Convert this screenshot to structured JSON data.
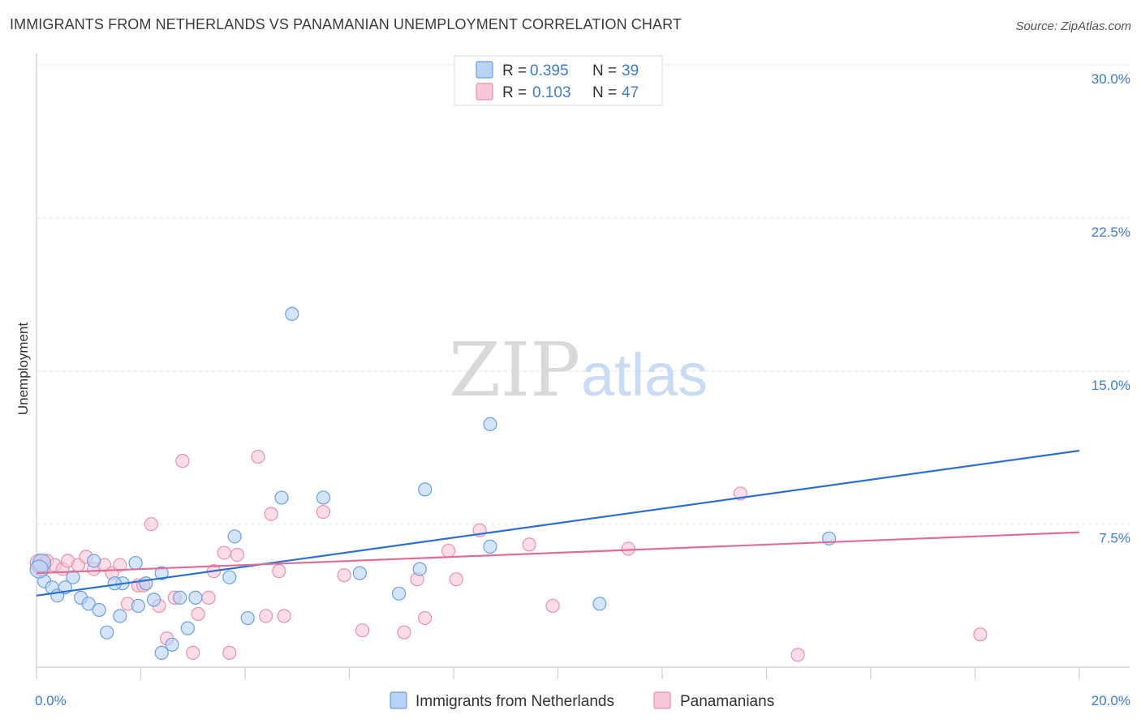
{
  "title": "IMMIGRANTS FROM NETHERLANDS VS PANAMANIAN UNEMPLOYMENT CORRELATION CHART",
  "source": "Source: ZipAtlas.com",
  "colors": {
    "blue_fill": "#b8d3f5",
    "blue_stroke": "#6a9fe0",
    "blue_line": "#2a6fd6",
    "pink_fill": "#f8c6d6",
    "pink_stroke": "#ea8fae",
    "pink_line": "#e06c98",
    "tick_text": "#3d7bd1",
    "grid": "#e2e2e2"
  },
  "legend": {
    "rows": [
      {
        "r_label": "R =",
        "r_value": "0.395",
        "n_label": "N =",
        "n_value": "39"
      },
      {
        "r_label": "R =",
        "r_value": "0.103",
        "n_label": "N =",
        "n_value": "47"
      }
    ]
  },
  "bottom_legend": [
    "Immigrants from Netherlands",
    "Panamanians"
  ],
  "watermark": {
    "zip": "ZIP",
    "atlas": "atlas"
  },
  "chart_data": {
    "type": "scatter",
    "title": "IMMIGRANTS FROM NETHERLANDS VS PANAMANIAN UNEMPLOYMENT CORRELATION CHART",
    "xlabel": "",
    "ylabel": "Unemployment",
    "xlim": [
      0,
      20
    ],
    "ylim": [
      0,
      31
    ],
    "x_tick_labels": [
      "0.0%",
      "20.0%"
    ],
    "y_ticks": [
      7.5,
      15.0,
      22.5,
      30.0
    ],
    "y_tick_labels": [
      "7.5%",
      "15.0%",
      "22.5%",
      "30.0%"
    ],
    "grid": true,
    "series": [
      {
        "name": "Immigrants from Netherlands",
        "color": "blue",
        "trend": {
          "x": [
            0,
            20
          ],
          "y": [
            4.0,
            11.1
          ]
        },
        "points": [
          [
            0.1,
            5.6
          ],
          [
            0.15,
            4.7
          ],
          [
            0.3,
            4.4
          ],
          [
            0.4,
            4.0
          ],
          [
            0.55,
            4.4
          ],
          [
            0.7,
            4.9
          ],
          [
            0.85,
            3.9
          ],
          [
            1.0,
            3.6
          ],
          [
            1.1,
            5.7
          ],
          [
            1.2,
            3.3
          ],
          [
            1.35,
            2.2
          ],
          [
            1.6,
            3.0
          ],
          [
            1.65,
            4.6
          ],
          [
            1.9,
            5.6
          ],
          [
            1.95,
            3.5
          ],
          [
            2.1,
            4.6
          ],
          [
            2.25,
            3.8
          ],
          [
            2.4,
            5.1
          ],
          [
            2.4,
            1.2
          ],
          [
            2.6,
            1.6
          ],
          [
            2.75,
            3.9
          ],
          [
            2.9,
            2.4
          ],
          [
            3.05,
            3.9
          ],
          [
            3.7,
            4.9
          ],
          [
            3.8,
            6.9
          ],
          [
            4.05,
            2.9
          ],
          [
            4.7,
            8.8
          ],
          [
            4.9,
            17.8
          ],
          [
            5.5,
            8.8
          ],
          [
            6.2,
            5.1
          ],
          [
            6.95,
            4.1
          ],
          [
            7.35,
            5.3
          ],
          [
            7.45,
            9.2
          ],
          [
            8.7,
            12.4
          ],
          [
            8.7,
            6.4
          ],
          [
            10.8,
            3.6
          ],
          [
            15.2,
            6.8
          ],
          [
            0.05,
            5.3
          ],
          [
            1.5,
            4.6
          ]
        ]
      },
      {
        "name": "Panamanians",
        "color": "pink",
        "trend": {
          "x": [
            0,
            20
          ],
          "y": [
            5.1,
            7.1
          ]
        },
        "points": [
          [
            0.05,
            5.6
          ],
          [
            0.1,
            5.4
          ],
          [
            0.2,
            5.7
          ],
          [
            0.35,
            5.5
          ],
          [
            0.5,
            5.3
          ],
          [
            0.6,
            5.7
          ],
          [
            0.8,
            5.5
          ],
          [
            0.95,
            5.9
          ],
          [
            1.1,
            5.3
          ],
          [
            1.3,
            5.5
          ],
          [
            1.45,
            5.1
          ],
          [
            1.6,
            5.5
          ],
          [
            1.75,
            3.6
          ],
          [
            1.95,
            4.5
          ],
          [
            2.05,
            4.5
          ],
          [
            2.2,
            7.5
          ],
          [
            2.35,
            3.5
          ],
          [
            2.5,
            1.9
          ],
          [
            2.65,
            3.9
          ],
          [
            2.8,
            10.6
          ],
          [
            3.0,
            1.2
          ],
          [
            3.1,
            3.1
          ],
          [
            3.3,
            3.9
          ],
          [
            3.4,
            5.2
          ],
          [
            3.6,
            6.1
          ],
          [
            3.7,
            1.2
          ],
          [
            3.85,
            6.0
          ],
          [
            4.25,
            10.8
          ],
          [
            4.4,
            3.0
          ],
          [
            4.5,
            8.0
          ],
          [
            4.65,
            5.2
          ],
          [
            4.75,
            3.0
          ],
          [
            5.5,
            8.1
          ],
          [
            5.9,
            5.0
          ],
          [
            6.25,
            2.3
          ],
          [
            7.05,
            2.2
          ],
          [
            7.3,
            4.8
          ],
          [
            7.45,
            2.9
          ],
          [
            7.9,
            6.2
          ],
          [
            8.05,
            4.8
          ],
          [
            8.5,
            7.2
          ],
          [
            9.45,
            6.5
          ],
          [
            9.9,
            3.5
          ],
          [
            11.35,
            6.3
          ],
          [
            13.5,
            9.0
          ],
          [
            14.6,
            1.1
          ],
          [
            18.1,
            2.1
          ]
        ]
      }
    ]
  }
}
